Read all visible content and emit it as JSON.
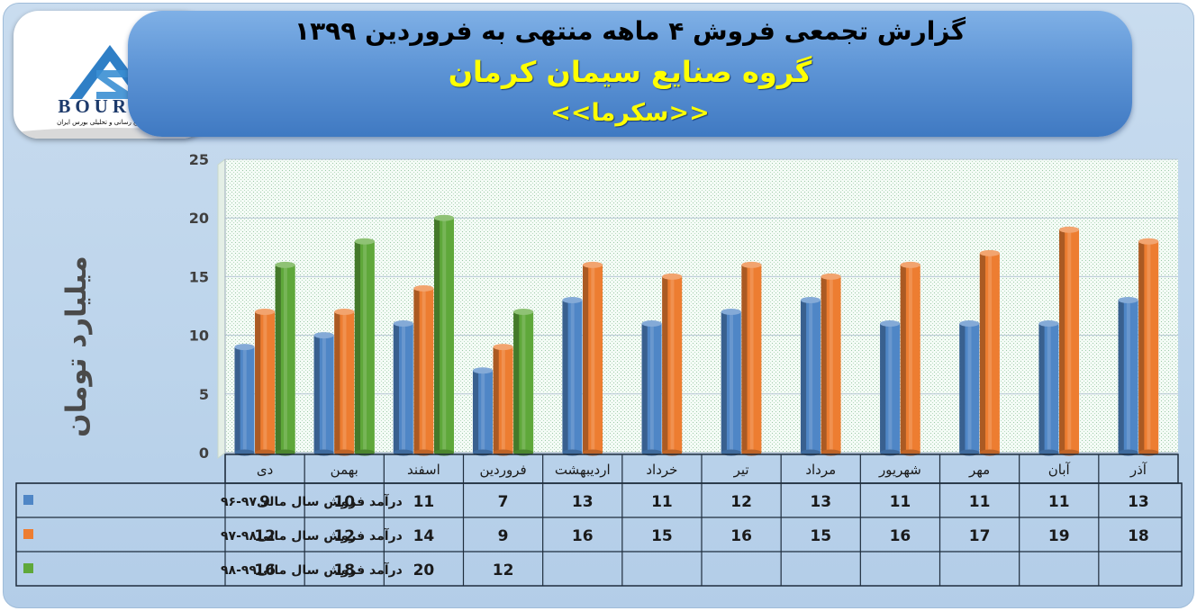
{
  "header": {
    "title": "گزارش تجمعی فروش ۴ ماهه منتهی به فروردین ۱۳۹۹",
    "subtitle": "گروه صنایع سیمان کرمان",
    "ticker": "<<سکرما>>"
  },
  "logo": {
    "brand": "BOURSE",
    "tagline": "پایگاه اطلاع رسانی و تحلیلی بورس ایران"
  },
  "colors": {
    "series1": "#4f86c6",
    "series2": "#ed7d31",
    "series3": "#5fa83a",
    "banner": "#5e95d6",
    "title_accent": "#ffff00"
  },
  "chart_data": {
    "type": "bar",
    "ylabel": "میلیارد تومان",
    "ylim": [
      0,
      25
    ],
    "yticks": [
      0,
      5,
      10,
      15,
      20,
      25
    ],
    "grid": true,
    "legend": "table-left",
    "categories": [
      "دی",
      "بهمن",
      "اسفند",
      "فروردین",
      "اردیبهشت",
      "خرداد",
      "تیر",
      "مرداد",
      "شهریور",
      "مهر",
      "آبان",
      "آذر"
    ],
    "series": [
      {
        "name": "درآمد فروش سال مالی۹۷-۹۶",
        "values": [
          9,
          10,
          11,
          7,
          13,
          11,
          12,
          13,
          11,
          11,
          11,
          13
        ]
      },
      {
        "name": "درآمد فروش سال مالی۹۸-۹۷",
        "values": [
          12,
          12,
          14,
          9,
          16,
          15,
          16,
          15,
          16,
          17,
          19,
          18
        ]
      },
      {
        "name": "درآمد فروش سال مالی۹۹-۹۸",
        "values": [
          16,
          18,
          20,
          12,
          null,
          null,
          null,
          null,
          null,
          null,
          null,
          null
        ]
      }
    ]
  }
}
